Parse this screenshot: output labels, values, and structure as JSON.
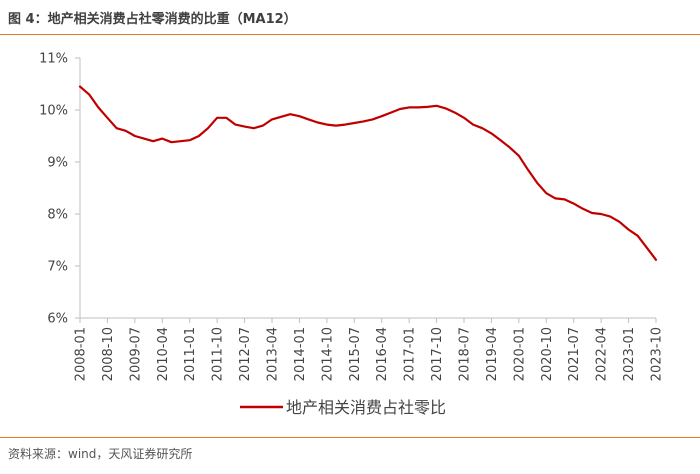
{
  "header": {
    "title": "图 4：地产相关消费占社零消费的比重（MA12）"
  },
  "footer": {
    "source": "资料来源：wind，天风证券研究所"
  },
  "chart_data": {
    "type": "line",
    "title": "图 4：地产相关消费占社零消费的比重（MA12）",
    "xlabel": "",
    "ylabel": "",
    "ylim": [
      6,
      11
    ],
    "y_ticks": [
      "6%",
      "7%",
      "8%",
      "9%",
      "10%",
      "11%"
    ],
    "x_ticks": [
      "2008-01",
      "2008-10",
      "2009-07",
      "2010-04",
      "2011-01",
      "2011-10",
      "2012-07",
      "2013-04",
      "2014-01",
      "2014-10",
      "2015-07",
      "2016-04",
      "2017-01",
      "2017-10",
      "2018-07",
      "2019-04",
      "2020-01",
      "2020-10",
      "2021-07",
      "2022-04",
      "2023-01",
      "2023-10"
    ],
    "grid": false,
    "legend": "bottom-center",
    "colors": {
      "series": "#c00000",
      "axis": "#bfbfbf",
      "accent": "#e07b2c"
    },
    "series": [
      {
        "name": "地产相关消费占社零比",
        "x": [
          "2008-01",
          "2008-04",
          "2008-07",
          "2008-10",
          "2009-01",
          "2009-04",
          "2009-07",
          "2009-10",
          "2010-01",
          "2010-04",
          "2010-07",
          "2010-10",
          "2011-01",
          "2011-04",
          "2011-07",
          "2011-10",
          "2012-01",
          "2012-04",
          "2012-07",
          "2012-10",
          "2013-01",
          "2013-04",
          "2013-07",
          "2013-10",
          "2014-01",
          "2014-04",
          "2014-07",
          "2014-10",
          "2015-01",
          "2015-04",
          "2015-07",
          "2015-10",
          "2016-01",
          "2016-04",
          "2016-07",
          "2016-10",
          "2017-01",
          "2017-04",
          "2017-07",
          "2017-10",
          "2018-01",
          "2018-04",
          "2018-07",
          "2018-10",
          "2019-01",
          "2019-04",
          "2019-07",
          "2019-10",
          "2020-01",
          "2020-04",
          "2020-07",
          "2020-10",
          "2021-01",
          "2021-04",
          "2021-07",
          "2021-10",
          "2022-01",
          "2022-04",
          "2022-07",
          "2022-10",
          "2023-01",
          "2023-04",
          "2023-07",
          "2023-10"
        ],
        "values": [
          10.45,
          10.3,
          10.05,
          9.85,
          9.65,
          9.6,
          9.5,
          9.45,
          9.4,
          9.45,
          9.38,
          9.4,
          9.42,
          9.5,
          9.65,
          9.85,
          9.85,
          9.72,
          9.68,
          9.65,
          9.7,
          9.82,
          9.87,
          9.92,
          9.88,
          9.82,
          9.76,
          9.72,
          9.7,
          9.72,
          9.75,
          9.78,
          9.82,
          9.88,
          9.95,
          10.02,
          10.05,
          10.05,
          10.06,
          10.08,
          10.03,
          9.95,
          9.85,
          9.72,
          9.65,
          9.55,
          9.42,
          9.28,
          9.12,
          8.85,
          8.6,
          8.4,
          8.3,
          8.28,
          8.2,
          8.1,
          8.02,
          8.0,
          7.95,
          7.85,
          7.7,
          7.58,
          7.35,
          7.12
        ]
      }
    ]
  }
}
